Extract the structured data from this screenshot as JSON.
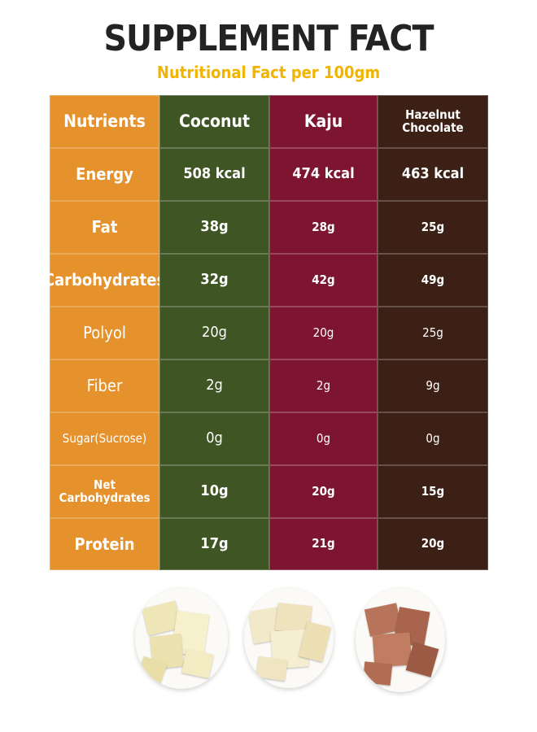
{
  "title": "SUPPLEMENT FACT",
  "subtitle": "Nutritional Fact per 100gm",
  "headers": [
    "Nutrients",
    "Coconut",
    "Kaju",
    "Hazelnut Chocolate"
  ],
  "rows": [
    {
      "label": "Energy",
      "values": [
        "508 kcal",
        "474 kcal",
        "463 kcal"
      ]
    },
    {
      "label": "Fat",
      "values": [
        "38g",
        "28g",
        "25g"
      ]
    },
    {
      "label": "Carbohydrates",
      "values": [
        "32g",
        "42g",
        "49g"
      ]
    },
    {
      "label": "Polyol",
      "values": [
        "20g",
        "20g",
        "25g"
      ]
    },
    {
      "label": "Fiber",
      "values": [
        "2g",
        "2g",
        "9g"
      ]
    },
    {
      "label": "Sugar(Sucrose)",
      "values": [
        "0g",
        "0g",
        "0g"
      ]
    },
    {
      "label": "Net Carbohydrates",
      "values": [
        "10g",
        "20g",
        "15g"
      ]
    },
    {
      "label": "Protein",
      "values": [
        "17g",
        "21g",
        "20g"
      ]
    }
  ],
  "colors": {
    "label_column": "#e6922c",
    "coconut_column": "#3f5624",
    "kaju_column": "#7e1530",
    "hazelnut_column": "#3d2015",
    "title": "#232323",
    "subtitle": "#f2b400"
  },
  "images": [
    "coconut-bowl",
    "kaju-bowl",
    "hazelnut-chocolate-bowl"
  ]
}
